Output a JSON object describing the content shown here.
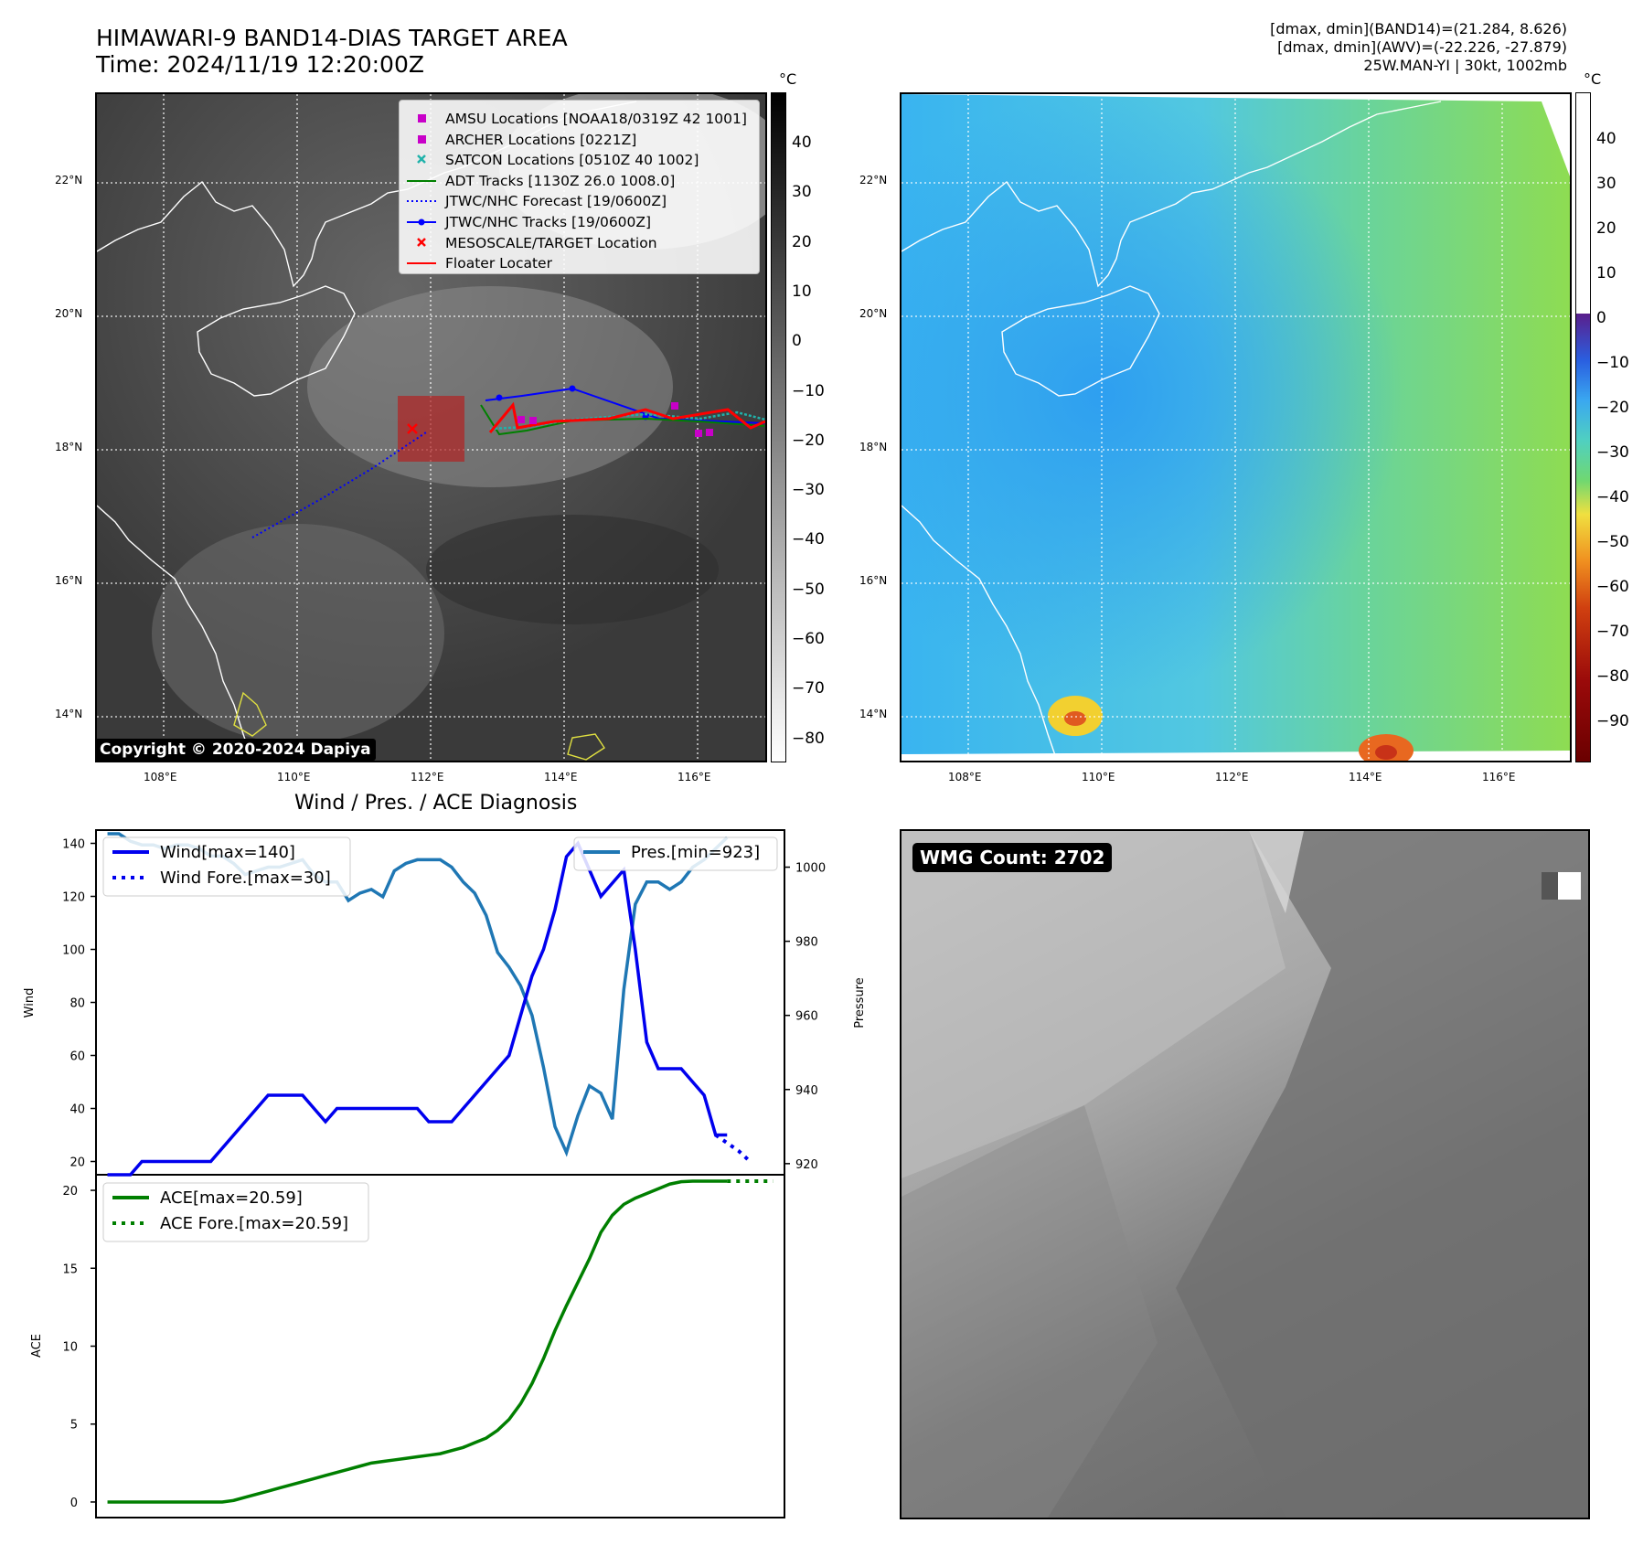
{
  "header": {
    "title_line1": "HIMAWARI-9 BAND14-DIAS TARGET AREA",
    "title_line2": "Time: 2024/11/19 12:20:00Z",
    "info_line1": "[dmax, dmin](BAND14)=(21.284, 8.626)",
    "info_line2": "[dmax, dmin](AWV)=(-22.226, -27.879)",
    "info_line3": "25W.MAN-YI | 30kt, 1002mb"
  },
  "map": {
    "lat_labels": [
      "22°N",
      "20°N",
      "18°N",
      "16°N",
      "14°N"
    ],
    "lon_labels": [
      "108°E",
      "110°E",
      "112°E",
      "114°E",
      "116°E"
    ],
    "copyright": "Copyright © 2020-2024 Dapiya",
    "unit": "°C",
    "legend": [
      {
        "label": "AMSU Locations [NOAA18/0319Z 42 1001]",
        "symbol": "square",
        "color": "#c800c8"
      },
      {
        "label": "ARCHER Locations [0221Z]",
        "symbol": "square",
        "color": "#c800c8"
      },
      {
        "label": "SATCON Locations [0510Z 40 1002]",
        "symbol": "x",
        "color": "#20b2aa"
      },
      {
        "label": "ADT Tracks [1130Z 26.0 1008.0]",
        "symbol": "line",
        "color": "#008000"
      },
      {
        "label": "JTWC/NHC Forecast [19/0600Z]",
        "symbol": "dotted",
        "color": "#0000ff"
      },
      {
        "label": "JTWC/NHC Tracks [19/0600Z]",
        "symbol": "line-dot",
        "color": "#0000ff"
      },
      {
        "label": "MESOSCALE/TARGET Location",
        "symbol": "x",
        "color": "#ff0000"
      },
      {
        "label": "Floater Locater",
        "symbol": "line",
        "color": "#ff0000"
      }
    ],
    "gray_colorbar_ticks": [
      "40",
      "30",
      "20",
      "10",
      "0",
      "−10",
      "−20",
      "−30",
      "−40",
      "−50",
      "−60",
      "−70",
      "−80"
    ],
    "color_colorbar_ticks": [
      "40",
      "30",
      "20",
      "10",
      "0",
      "−10",
      "−20",
      "−30",
      "−40",
      "−50",
      "−60",
      "−70",
      "−80",
      "−90"
    ]
  },
  "chart_data": [
    {
      "type": "line",
      "title": "Wind / Pres. / ACE Diagnosis",
      "ylabel": "Wind",
      "y2label": "Pressure",
      "ylim": [
        15,
        145
      ],
      "y2lim": [
        917,
        1010
      ],
      "wind_ticks": [
        "140",
        "120",
        "100",
        "80",
        "60",
        "40",
        "20"
      ],
      "pressure_ticks": [
        "1000",
        "980",
        "960",
        "940",
        "920"
      ],
      "series": [
        {
          "name": "Wind[max=140]",
          "color": "#0000ee",
          "x": [
            0,
            1,
            2,
            3,
            4,
            5,
            6,
            7,
            8,
            9,
            10,
            11,
            12,
            13,
            14,
            15,
            16,
            17,
            18,
            19,
            20,
            21,
            22,
            23,
            24,
            25,
            26,
            27,
            28,
            29,
            30,
            31,
            32,
            33,
            34,
            35,
            36,
            37,
            38,
            39,
            40,
            41,
            42,
            43,
            44,
            45,
            46,
            47,
            48,
            49,
            50,
            51,
            52,
            53,
            54
          ],
          "values": [
            15,
            15,
            15,
            20,
            20,
            20,
            20,
            20,
            20,
            20,
            25,
            30,
            35,
            40,
            45,
            45,
            45,
            45,
            40,
            35,
            40,
            40,
            40,
            40,
            40,
            40,
            40,
            40,
            35,
            35,
            35,
            40,
            45,
            50,
            55,
            60,
            75,
            90,
            100,
            115,
            135,
            140,
            130,
            120,
            125,
            130,
            100,
            65,
            55,
            55,
            55,
            50,
            45,
            30,
            30
          ]
        },
        {
          "name": "Wind Fore.[max=30]",
          "color": "#0000ee",
          "style": "dotted",
          "x": [
            53,
            54,
            55,
            56
          ],
          "values": [
            30,
            27,
            24,
            20
          ]
        },
        {
          "name": "Pres.[min=923]",
          "color": "#1f77b4",
          "x": [
            0,
            1,
            2,
            3,
            4,
            5,
            6,
            7,
            8,
            9,
            10,
            11,
            12,
            13,
            14,
            15,
            16,
            17,
            18,
            19,
            20,
            21,
            22,
            23,
            24,
            25,
            26,
            27,
            28,
            29,
            30,
            31,
            32,
            33,
            34,
            35,
            36,
            37,
            38,
            39,
            40,
            41,
            42,
            43,
            44,
            45,
            46,
            47,
            48,
            49,
            50,
            51,
            52,
            53,
            54
          ],
          "values": [
            1009,
            1009,
            1007,
            1006,
            1006,
            1005,
            1006,
            1006,
            1005,
            1003,
            1003,
            1001,
            998,
            999,
            1000,
            1000,
            1001,
            1002,
            998,
            996,
            996,
            991,
            993,
            994,
            992,
            999,
            1001,
            1002,
            1002,
            1002,
            1000,
            996,
            993,
            987,
            977,
            973,
            968,
            960,
            946,
            930,
            923,
            933,
            941,
            939,
            932,
            967,
            990,
            996,
            996,
            994,
            996,
            1000,
            1002,
            1005,
            1008
          ]
        }
      ]
    },
    {
      "type": "line",
      "ylabel": "ACE",
      "ylim": [
        -1,
        21
      ],
      "ace_ticks": [
        "20",
        "15",
        "10",
        "5",
        "0"
      ],
      "series": [
        {
          "name": "ACE[max=20.59]",
          "color": "#007f00",
          "x": [
            0,
            1,
            2,
            3,
            4,
            5,
            6,
            7,
            8,
            9,
            10,
            11,
            12,
            13,
            14,
            15,
            16,
            17,
            18,
            19,
            20,
            21,
            22,
            23,
            24,
            25,
            26,
            27,
            28,
            29,
            30,
            31,
            32,
            33,
            34,
            35,
            36,
            37,
            38,
            39,
            40,
            41,
            42,
            43,
            44,
            45,
            46,
            47,
            48,
            49,
            50,
            51,
            52,
            53,
            54
          ],
          "values": [
            0,
            0,
            0,
            0,
            0,
            0,
            0,
            0,
            0,
            0,
            0,
            0.1,
            0.3,
            0.5,
            0.7,
            0.9,
            1.1,
            1.3,
            1.5,
            1.7,
            1.9,
            2.1,
            2.3,
            2.5,
            2.6,
            2.7,
            2.8,
            2.9,
            3.0,
            3.1,
            3.3,
            3.5,
            3.8,
            4.1,
            4.6,
            5.3,
            6.3,
            7.6,
            9.2,
            11.0,
            12.6,
            14.1,
            15.6,
            17.3,
            18.4,
            19.1,
            19.5,
            19.8,
            20.1,
            20.4,
            20.55,
            20.59,
            20.59,
            20.59,
            20.59
          ]
        },
        {
          "name": "ACE Fore.[max=20.59]",
          "color": "#007f00",
          "style": "dotted",
          "x": [
            54,
            55,
            56,
            57,
            58
          ],
          "values": [
            20.59,
            20.59,
            20.59,
            20.59,
            20.59
          ]
        }
      ]
    }
  ],
  "wmg_panel": {
    "label": "WMG Count: 2702"
  }
}
